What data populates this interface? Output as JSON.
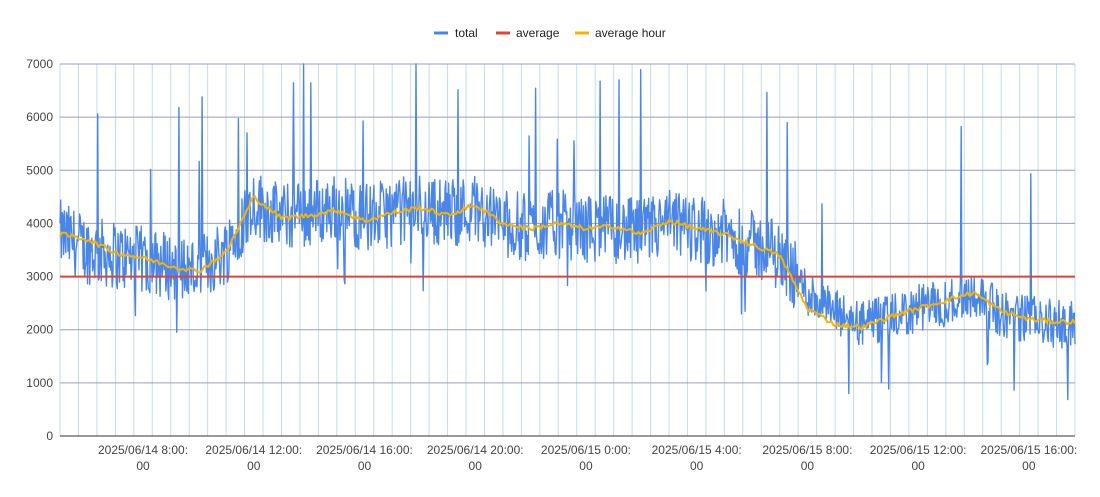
{
  "chart_data": {
    "type": "line",
    "title": "",
    "xlabel": "",
    "ylabel": "",
    "ylim": [
      0,
      7000
    ],
    "y_ticks": [
      "0",
      "1000",
      "2000",
      "3000",
      "4000",
      "5000",
      "6000",
      "7000"
    ],
    "x_range": [
      "2025/06/14 05:00:00",
      "2025/06/15 17:40:00"
    ],
    "x_ticks": [
      {
        "at": "2025/06/14 08:00:00",
        "line1": "2025/06/14 8:00:",
        "line2": "00"
      },
      {
        "at": "2025/06/14 12:00:00",
        "line1": "2025/06/14 12:00:",
        "line2": "00"
      },
      {
        "at": "2025/06/14 16:00:00",
        "line1": "2025/06/14 16:00:",
        "line2": "00"
      },
      {
        "at": "2025/06/14 20:00:00",
        "line1": "2025/06/14 20:00:",
        "line2": "00"
      },
      {
        "at": "2025/06/15 00:00:00",
        "line1": "2025/06/15 0:00:",
        "line2": "00"
      },
      {
        "at": "2025/06/15 04:00:00",
        "line1": "2025/06/15 4:00:",
        "line2": "00"
      },
      {
        "at": "2025/06/15 08:00:00",
        "line1": "2025/06/15 8:00:",
        "line2": "00"
      },
      {
        "at": "2025/06/15 12:00:00",
        "line1": "2025/06/15 12:00:",
        "line2": "00"
      },
      {
        "at": "2025/06/15 16:00:00",
        "line1": "2025/06/15 16:00:",
        "line2": "00"
      }
    ],
    "grid": true,
    "legend_position": "top",
    "series": [
      {
        "name": "total",
        "color": "#4a86e8",
        "x": [
          "2025/06/14 05:00:00",
          "2025/06/14 06:00:00",
          "2025/06/14 07:00:00",
          "2025/06/14 08:00:00",
          "2025/06/14 09:00:00",
          "2025/06/14 10:00:00",
          "2025/06/14 11:00:00",
          "2025/06/14 12:00:00",
          "2025/06/14 13:00:00",
          "2025/06/14 14:00:00",
          "2025/06/14 15:00:00",
          "2025/06/14 16:00:00",
          "2025/06/14 17:00:00",
          "2025/06/14 18:00:00",
          "2025/06/14 19:00:00",
          "2025/06/14 20:00:00",
          "2025/06/14 21:00:00",
          "2025/06/14 22:00:00",
          "2025/06/14 23:00:00",
          "2025/06/15 00:00:00",
          "2025/06/15 01:00:00",
          "2025/06/15 02:00:00",
          "2025/06/15 03:00:00",
          "2025/06/15 04:00:00",
          "2025/06/15 05:00:00",
          "2025/06/15 06:00:00",
          "2025/06/15 07:00:00",
          "2025/06/15 08:00:00",
          "2025/06/15 09:00:00",
          "2025/06/15 10:00:00",
          "2025/06/15 11:00:00",
          "2025/06/15 12:00:00",
          "2025/06/15 13:00:00",
          "2025/06/15 14:00:00",
          "2025/06/15 15:00:00",
          "2025/06/15 16:00:00",
          "2025/06/15 17:00:00"
        ],
        "values": [
          3800,
          3500,
          3400,
          3300,
          3200,
          3100,
          3500,
          4400,
          4100,
          4200,
          4300,
          4100,
          4200,
          4300,
          4200,
          4300,
          4000,
          3900,
          4000,
          3900,
          3900,
          3800,
          4000,
          3900,
          3800,
          3600,
          3400,
          2700,
          2300,
          2100,
          2200,
          2400,
          2500,
          2700,
          2300,
          2200,
          2100
        ]
      },
      {
        "name": "average",
        "color": "#db4437",
        "x": [
          "2025/06/14 05:00:00",
          "2025/06/15 17:40:00"
        ],
        "values": [
          3000,
          3000
        ]
      },
      {
        "name": "average hour",
        "color": "#f4b400",
        "x": [
          "2025/06/14 05:00:00",
          "2025/06/14 06:00:00",
          "2025/06/14 07:00:00",
          "2025/06/14 08:00:00",
          "2025/06/14 09:00:00",
          "2025/06/14 10:00:00",
          "2025/06/14 11:00:00",
          "2025/06/14 12:00:00",
          "2025/06/14 13:00:00",
          "2025/06/14 14:00:00",
          "2025/06/14 15:00:00",
          "2025/06/14 16:00:00",
          "2025/06/14 17:00:00",
          "2025/06/14 18:00:00",
          "2025/06/14 19:00:00",
          "2025/06/14 20:00:00",
          "2025/06/14 21:00:00",
          "2025/06/14 22:00:00",
          "2025/06/14 23:00:00",
          "2025/06/15 00:00:00",
          "2025/06/15 01:00:00",
          "2025/06/15 02:00:00",
          "2025/06/15 03:00:00",
          "2025/06/15 04:00:00",
          "2025/06/15 05:00:00",
          "2025/06/15 06:00:00",
          "2025/06/15 07:00:00",
          "2025/06/15 08:00:00",
          "2025/06/15 09:00:00",
          "2025/06/15 10:00:00",
          "2025/06/15 11:00:00",
          "2025/06/15 12:00:00",
          "2025/06/15 13:00:00",
          "2025/06/15 14:00:00",
          "2025/06/15 15:00:00",
          "2025/06/15 16:00:00",
          "2025/06/15 17:00:00"
        ],
        "values": [
          3800,
          3700,
          3450,
          3350,
          3200,
          3100,
          3450,
          4500,
          4100,
          4150,
          4250,
          4050,
          4200,
          4300,
          4150,
          4350,
          4000,
          3900,
          4000,
          3900,
          3950,
          3800,
          4050,
          3900,
          3800,
          3600,
          3400,
          2400,
          2100,
          2050,
          2250,
          2400,
          2550,
          2700,
          2350,
          2200,
          2150
        ]
      }
    ]
  }
}
